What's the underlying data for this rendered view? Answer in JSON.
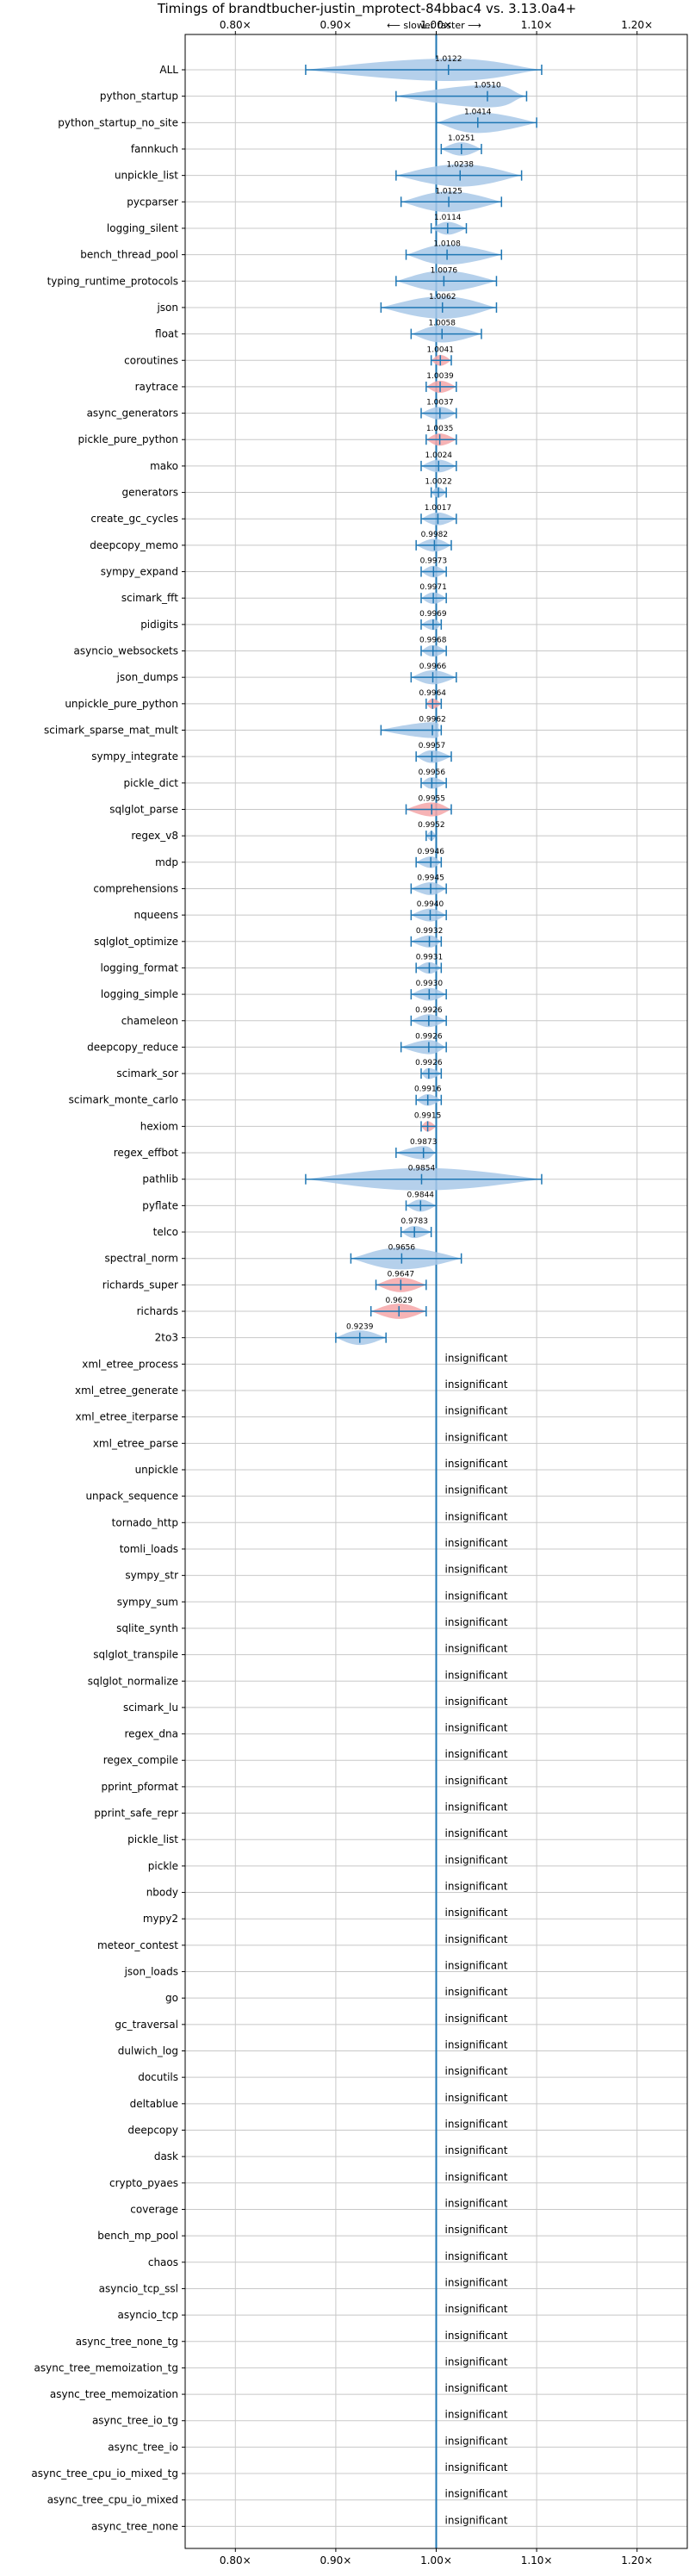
{
  "chart_data": {
    "type": "violin",
    "title": "Timings of brandtbucher-justin_mprotect-84bbac4 vs. 3.13.0a4+",
    "subtitle": "⟵ slower   faster ⟶",
    "xlim": [
      0.75,
      1.25
    ],
    "xticks": [
      {
        "v": 0.8,
        "label": "0.80×"
      },
      {
        "v": 0.9,
        "label": "0.90×"
      },
      {
        "v": 1.0,
        "label": "1.00×"
      },
      {
        "v": 1.1,
        "label": "1.10×"
      },
      {
        "v": 1.2,
        "label": "1.20×"
      }
    ],
    "grid": true,
    "colors": {
      "faster": "#a8c8e8",
      "slower": "#f4a6a8",
      "line": "#1f77b4"
    },
    "significant": [
      {
        "name": "ALL",
        "value": 1.0122,
        "label": "1.0122",
        "min": 0.87,
        "max": 1.105,
        "slower": false
      },
      {
        "name": "python_startup",
        "value": 1.051,
        "label": "1.0510",
        "min": 0.96,
        "max": 1.09,
        "slower": false
      },
      {
        "name": "python_startup_no_site",
        "value": 1.0414,
        "label": "1.0414",
        "min": 1.0,
        "max": 1.1,
        "slower": false
      },
      {
        "name": "fannkuch",
        "value": 1.0251,
        "label": "1.0251",
        "min": 1.005,
        "max": 1.045,
        "slower": false
      },
      {
        "name": "unpickle_list",
        "value": 1.0238,
        "label": "1.0238",
        "min": 0.96,
        "max": 1.085,
        "slower": false
      },
      {
        "name": "pycparser",
        "value": 1.0125,
        "label": "1.0125",
        "min": 0.965,
        "max": 1.065,
        "slower": false
      },
      {
        "name": "logging_silent",
        "value": 1.0114,
        "label": "1.0114",
        "min": 0.995,
        "max": 1.03,
        "slower": false
      },
      {
        "name": "bench_thread_pool",
        "value": 1.0108,
        "label": "1.0108",
        "min": 0.97,
        "max": 1.065,
        "slower": false
      },
      {
        "name": "typing_runtime_protocols",
        "value": 1.0076,
        "label": "1.0076",
        "min": 0.96,
        "max": 1.06,
        "slower": false
      },
      {
        "name": "json",
        "value": 1.0062,
        "label": "1.0062",
        "min": 0.945,
        "max": 1.06,
        "slower": false
      },
      {
        "name": "float",
        "value": 1.0058,
        "label": "1.0058",
        "min": 0.975,
        "max": 1.045,
        "slower": false
      },
      {
        "name": "coroutines",
        "value": 1.0041,
        "label": "1.0041",
        "min": 0.995,
        "max": 1.015,
        "slower": true
      },
      {
        "name": "raytrace",
        "value": 1.0039,
        "label": "1.0039",
        "min": 0.99,
        "max": 1.02,
        "slower": true
      },
      {
        "name": "async_generators",
        "value": 1.0037,
        "label": "1.0037",
        "min": 0.985,
        "max": 1.02,
        "slower": false
      },
      {
        "name": "pickle_pure_python",
        "value": 1.0035,
        "label": "1.0035",
        "min": 0.99,
        "max": 1.02,
        "slower": true
      },
      {
        "name": "mako",
        "value": 1.0024,
        "label": "1.0024",
        "min": 0.985,
        "max": 1.02,
        "slower": false
      },
      {
        "name": "generators",
        "value": 1.0022,
        "label": "1.0022",
        "min": 0.995,
        "max": 1.01,
        "slower": false
      },
      {
        "name": "create_gc_cycles",
        "value": 1.0017,
        "label": "1.0017",
        "min": 0.985,
        "max": 1.02,
        "slower": false
      },
      {
        "name": "deepcopy_memo",
        "value": 0.9982,
        "label": "0.9982",
        "min": 0.98,
        "max": 1.015,
        "slower": false
      },
      {
        "name": "sympy_expand",
        "value": 0.9973,
        "label": "0.9973",
        "min": 0.985,
        "max": 1.01,
        "slower": false
      },
      {
        "name": "scimark_fft",
        "value": 0.9971,
        "label": "0.9971",
        "min": 0.985,
        "max": 1.01,
        "slower": false
      },
      {
        "name": "pidigits",
        "value": 0.9969,
        "label": "0.9969",
        "min": 0.985,
        "max": 1.005,
        "slower": false
      },
      {
        "name": "asyncio_websockets",
        "value": 0.9968,
        "label": "0.9968",
        "min": 0.985,
        "max": 1.01,
        "slower": false
      },
      {
        "name": "json_dumps",
        "value": 0.9966,
        "label": "0.9966",
        "min": 0.975,
        "max": 1.02,
        "slower": false
      },
      {
        "name": "unpickle_pure_python",
        "value": 0.9964,
        "label": "0.9964",
        "min": 0.99,
        "max": 1.005,
        "slower": true
      },
      {
        "name": "scimark_sparse_mat_mult",
        "value": 0.9962,
        "label": "0.9962",
        "min": 0.945,
        "max": 1.005,
        "slower": false
      },
      {
        "name": "sympy_integrate",
        "value": 0.9957,
        "label": "0.9957",
        "min": 0.98,
        "max": 1.015,
        "slower": false
      },
      {
        "name": "pickle_dict",
        "value": 0.9956,
        "label": "0.9956",
        "min": 0.985,
        "max": 1.01,
        "slower": false
      },
      {
        "name": "sqlglot_parse",
        "value": 0.9955,
        "label": "0.9955",
        "min": 0.97,
        "max": 1.015,
        "slower": true
      },
      {
        "name": "regex_v8",
        "value": 0.9952,
        "label": "0.9952",
        "min": 0.99,
        "max": 1.0,
        "slower": false
      },
      {
        "name": "mdp",
        "value": 0.9946,
        "label": "0.9946",
        "min": 0.98,
        "max": 1.005,
        "slower": false
      },
      {
        "name": "comprehensions",
        "value": 0.9945,
        "label": "0.9945",
        "min": 0.975,
        "max": 1.01,
        "slower": false
      },
      {
        "name": "nqueens",
        "value": 0.994,
        "label": "0.9940",
        "min": 0.975,
        "max": 1.01,
        "slower": false
      },
      {
        "name": "sqlglot_optimize",
        "value": 0.9932,
        "label": "0.9932",
        "min": 0.975,
        "max": 1.005,
        "slower": false
      },
      {
        "name": "logging_format",
        "value": 0.9931,
        "label": "0.9931",
        "min": 0.98,
        "max": 1.005,
        "slower": false
      },
      {
        "name": "logging_simple",
        "value": 0.993,
        "label": "0.9930",
        "min": 0.975,
        "max": 1.01,
        "slower": false
      },
      {
        "name": "chameleon",
        "value": 0.9926,
        "label": "0.9926",
        "min": 0.975,
        "max": 1.01,
        "slower": false
      },
      {
        "name": "deepcopy_reduce",
        "value": 0.9926,
        "label": "0.9926",
        "min": 0.965,
        "max": 1.01,
        "slower": false
      },
      {
        "name": "scimark_sor",
        "value": 0.9926,
        "label": "0.9926",
        "min": 0.985,
        "max": 1.005,
        "slower": false
      },
      {
        "name": "scimark_monte_carlo",
        "value": 0.9916,
        "label": "0.9916",
        "min": 0.98,
        "max": 1.005,
        "slower": false
      },
      {
        "name": "hexiom",
        "value": 0.9915,
        "label": "0.9915",
        "min": 0.985,
        "max": 1.0,
        "slower": true
      },
      {
        "name": "regex_effbot",
        "value": 0.9873,
        "label": "0.9873",
        "min": 0.96,
        "max": 1.0,
        "slower": false
      },
      {
        "name": "pathlib",
        "value": 0.9854,
        "label": "0.9854",
        "min": 0.87,
        "max": 1.105,
        "slower": false
      },
      {
        "name": "pyflate",
        "value": 0.9844,
        "label": "0.9844",
        "min": 0.97,
        "max": 1.0,
        "slower": false
      },
      {
        "name": "telco",
        "value": 0.9783,
        "label": "0.9783",
        "min": 0.965,
        "max": 0.995,
        "slower": false
      },
      {
        "name": "spectral_norm",
        "value": 0.9656,
        "label": "0.9656",
        "min": 0.915,
        "max": 1.025,
        "slower": false
      },
      {
        "name": "richards_super",
        "value": 0.9647,
        "label": "0.9647",
        "min": 0.94,
        "max": 0.99,
        "slower": true
      },
      {
        "name": "richards",
        "value": 0.9629,
        "label": "0.9629",
        "min": 0.935,
        "max": 0.99,
        "slower": true
      },
      {
        "name": "2to3",
        "value": 0.9239,
        "label": "0.9239",
        "min": 0.9,
        "max": 0.95,
        "slower": false
      }
    ],
    "insignificant_label": "insignificant",
    "insignificant": [
      "xml_etree_process",
      "xml_etree_generate",
      "xml_etree_iterparse",
      "xml_etree_parse",
      "unpickle",
      "unpack_sequence",
      "tornado_http",
      "tomli_loads",
      "sympy_str",
      "sympy_sum",
      "sqlite_synth",
      "sqlglot_transpile",
      "sqlglot_normalize",
      "scimark_lu",
      "regex_dna",
      "regex_compile",
      "pprint_pformat",
      "pprint_safe_repr",
      "pickle_list",
      "pickle",
      "nbody",
      "mypy2",
      "meteor_contest",
      "json_loads",
      "go",
      "gc_traversal",
      "dulwich_log",
      "docutils",
      "deltablue",
      "deepcopy",
      "dask",
      "crypto_pyaes",
      "coverage",
      "bench_mp_pool",
      "chaos",
      "asyncio_tcp_ssl",
      "asyncio_tcp",
      "async_tree_none_tg",
      "async_tree_memoization_tg",
      "async_tree_memoization",
      "async_tree_io_tg",
      "async_tree_io",
      "async_tree_cpu_io_mixed_tg",
      "async_tree_cpu_io_mixed",
      "async_tree_none"
    ]
  }
}
